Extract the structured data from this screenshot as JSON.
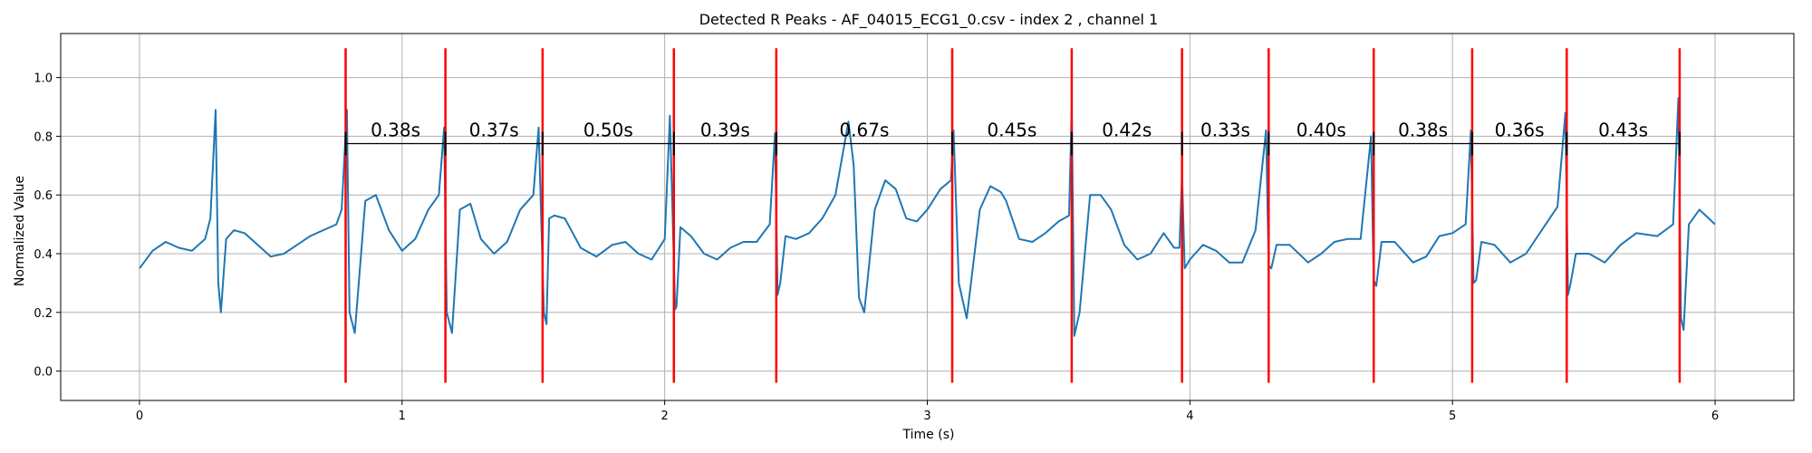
{
  "chart_data": {
    "type": "line",
    "title": "Detected R Peaks - AF_04015_ECG1_0.csv - index 2 , channel 1",
    "xlabel": "Time (s)",
    "ylabel": "Normalized Value",
    "xlim": [
      -0.3,
      6.3
    ],
    "ylim": [
      -0.1,
      1.15
    ],
    "xticks": [
      0,
      1,
      2,
      3,
      4,
      5,
      6
    ],
    "yticks": [
      0.0,
      0.2,
      0.4,
      0.6,
      0.8,
      1.0
    ],
    "xtick_labels": [
      "0",
      "1",
      "2",
      "3",
      "4",
      "5",
      "6"
    ],
    "ytick_labels": [
      "0.0",
      "0.2",
      "0.4",
      "0.6",
      "0.8",
      "1.0"
    ],
    "grid": true,
    "signal": {
      "color": "#1f77b4",
      "x": [
        0,
        0.05,
        0.1,
        0.15,
        0.2,
        0.25,
        0.27,
        0.29,
        0.3,
        0.31,
        0.33,
        0.36,
        0.4,
        0.45,
        0.5,
        0.55,
        0.6,
        0.65,
        0.7,
        0.75,
        0.77,
        0.79,
        0.8,
        0.82,
        0.86,
        0.9,
        0.95,
        1.0,
        1.05,
        1.1,
        1.14,
        1.16,
        1.17,
        1.19,
        1.22,
        1.26,
        1.3,
        1.35,
        1.4,
        1.45,
        1.5,
        1.52,
        1.54,
        1.55,
        1.56,
        1.58,
        1.62,
        1.68,
        1.74,
        1.8,
        1.85,
        1.9,
        1.95,
        2.0,
        2.02,
        2.04,
        2.045,
        2.06,
        2.1,
        2.15,
        2.2,
        2.25,
        2.3,
        2.35,
        2.4,
        2.42,
        2.43,
        2.44,
        2.46,
        2.5,
        2.55,
        2.6,
        2.65,
        2.7,
        2.72,
        2.74,
        2.76,
        2.8,
        2.84,
        2.88,
        2.92,
        2.96,
        3.0,
        3.05,
        3.09,
        3.1,
        3.12,
        3.15,
        3.2,
        3.24,
        3.28,
        3.3,
        3.35,
        3.4,
        3.45,
        3.5,
        3.54,
        3.55,
        3.56,
        3.58,
        3.62,
        3.66,
        3.7,
        3.75,
        3.8,
        3.85,
        3.9,
        3.94,
        3.96,
        3.97,
        3.98,
        4.0,
        4.05,
        4.1,
        4.15,
        4.2,
        4.25,
        4.29,
        4.3,
        4.31,
        4.33,
        4.38,
        4.45,
        4.5,
        4.55,
        4.6,
        4.65,
        4.69,
        4.7,
        4.71,
        4.73,
        4.78,
        4.85,
        4.9,
        4.95,
        5.0,
        5.05,
        5.07,
        5.08,
        5.09,
        5.11,
        5.16,
        5.22,
        5.28,
        5.34,
        5.4,
        5.43,
        5.44,
        5.45,
        5.47,
        5.52,
        5.58,
        5.64,
        5.7,
        5.78,
        5.84,
        5.86,
        5.87,
        5.88,
        5.9,
        5.94,
        6.0
      ],
      "y": [
        0.35,
        0.41,
        0.44,
        0.42,
        0.41,
        0.45,
        0.52,
        0.89,
        0.3,
        0.2,
        0.45,
        0.48,
        0.47,
        0.43,
        0.39,
        0.4,
        0.43,
        0.46,
        0.48,
        0.5,
        0.55,
        0.89,
        0.2,
        0.13,
        0.58,
        0.6,
        0.48,
        0.41,
        0.45,
        0.55,
        0.6,
        0.83,
        0.2,
        0.13,
        0.55,
        0.57,
        0.45,
        0.4,
        0.44,
        0.55,
        0.6,
        0.83,
        0.2,
        0.16,
        0.52,
        0.53,
        0.52,
        0.42,
        0.39,
        0.43,
        0.44,
        0.4,
        0.38,
        0.45,
        0.87,
        0.21,
        0.22,
        0.49,
        0.46,
        0.4,
        0.38,
        0.42,
        0.44,
        0.44,
        0.5,
        0.81,
        0.26,
        0.3,
        0.46,
        0.45,
        0.47,
        0.52,
        0.6,
        0.85,
        0.7,
        0.25,
        0.2,
        0.55,
        0.65,
        0.62,
        0.52,
        0.51,
        0.55,
        0.62,
        0.65,
        0.82,
        0.3,
        0.18,
        0.55,
        0.63,
        0.61,
        0.58,
        0.45,
        0.44,
        0.47,
        0.51,
        0.53,
        0.9,
        0.12,
        0.2,
        0.6,
        0.6,
        0.55,
        0.43,
        0.38,
        0.4,
        0.47,
        0.42,
        0.42,
        0.67,
        0.35,
        0.38,
        0.43,
        0.41,
        0.37,
        0.37,
        0.48,
        0.82,
        0.36,
        0.35,
        0.43,
        0.43,
        0.37,
        0.4,
        0.44,
        0.45,
        0.45,
        0.8,
        0.31,
        0.29,
        0.44,
        0.44,
        0.37,
        0.39,
        0.46,
        0.47,
        0.5,
        0.82,
        0.3,
        0.31,
        0.44,
        0.43,
        0.37,
        0.4,
        0.48,
        0.56,
        0.88,
        0.26,
        0.3,
        0.4,
        0.4,
        0.37,
        0.43,
        0.47,
        0.46,
        0.5,
        0.93,
        0.18,
        0.14,
        0.5,
        0.55,
        0.5
      ]
    },
    "r_peaks": {
      "color": "#ff0000",
      "x": [
        0.785,
        1.165,
        1.535,
        2.035,
        2.425,
        3.095,
        3.55,
        3.97,
        4.3,
        4.7,
        5.075,
        5.435,
        5.865
      ],
      "ymin": -0.04,
      "ymax": 1.1
    },
    "rr_baseline": {
      "y": 0.775,
      "color": "#000000",
      "tick_half_height": 0.04
    },
    "rr_intervals": [
      {
        "label": "0.38s",
        "x": 0.975
      },
      {
        "label": "0.37s",
        "x": 1.35
      },
      {
        "label": "0.50s",
        "x": 1.785
      },
      {
        "label": "0.39s",
        "x": 2.23
      },
      {
        "label": "0.67s",
        "x": 2.76
      },
      {
        "label": "0.45s",
        "x": 3.3225
      },
      {
        "label": "0.42s",
        "x": 3.76
      },
      {
        "label": "0.33s",
        "x": 4.135
      },
      {
        "label": "0.40s",
        "x": 4.5
      },
      {
        "label": "0.38s",
        "x": 4.8875
      },
      {
        "label": "0.36s",
        "x": 5.255
      },
      {
        "label": "0.43s",
        "x": 5.65
      }
    ],
    "interval_label_y": 0.8
  }
}
